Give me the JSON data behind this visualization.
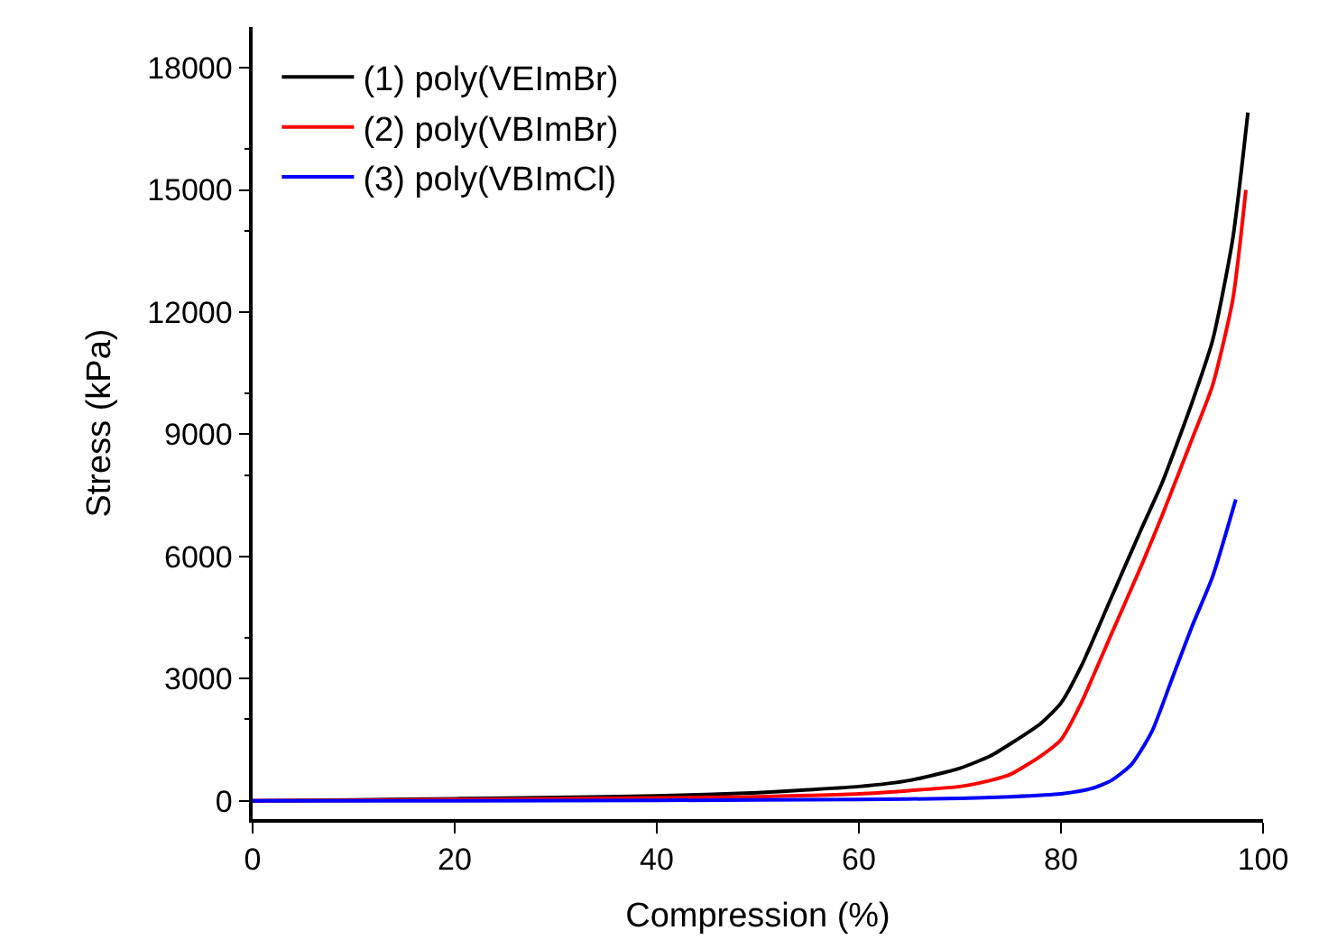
{
  "chart_data": {
    "type": "line",
    "xlabel": "Compression (%)",
    "ylabel": "Stress (kPa)",
    "xlim": [
      0,
      100
    ],
    "ylim": [
      -450,
      19000
    ],
    "xticks": [
      0,
      20,
      40,
      60,
      80,
      100
    ],
    "yticks": [
      0,
      3000,
      6000,
      9000,
      12000,
      15000,
      18000
    ],
    "legend": "top left",
    "marker": "none",
    "line_style": "solid",
    "series": [
      {
        "name": "(1) poly(VEImBr)",
        "color": "#000000",
        "x": [
          0,
          10,
          20,
          30,
          40,
          50,
          55,
          60,
          65,
          70,
          73,
          75,
          78,
          80,
          82,
          85,
          88,
          90,
          93,
          95,
          97,
          98.5
        ],
        "values": [
          0,
          20,
          50,
          80,
          120,
          200,
          270,
          350,
          500,
          800,
          1100,
          1400,
          1900,
          2400,
          3300,
          5000,
          6700,
          7800,
          9800,
          11300,
          13800,
          16900
        ]
      },
      {
        "name": "(2) poly(VBImBr)",
        "color": "#ff0000",
        "x": [
          0,
          10,
          20,
          30,
          40,
          50,
          55,
          60,
          65,
          70,
          73,
          75,
          78,
          80,
          82,
          85,
          88,
          90,
          93,
          95,
          97,
          98.3
        ],
        "values": [
          0,
          10,
          30,
          50,
          70,
          100,
          130,
          170,
          250,
          350,
          500,
          650,
          1100,
          1500,
          2400,
          4100,
          5800,
          7000,
          8900,
          10200,
          12300,
          15000
        ]
      },
      {
        "name": "(3) poly(VBImCl)",
        "color": "#0000ff",
        "x": [
          0,
          20,
          40,
          60,
          70,
          75,
          80,
          83,
          85,
          87,
          89,
          91,
          93,
          95,
          97.3
        ],
        "values": [
          0,
          0,
          10,
          30,
          60,
          100,
          170,
          300,
          500,
          900,
          1700,
          3000,
          4300,
          5500,
          7400
        ]
      }
    ]
  }
}
